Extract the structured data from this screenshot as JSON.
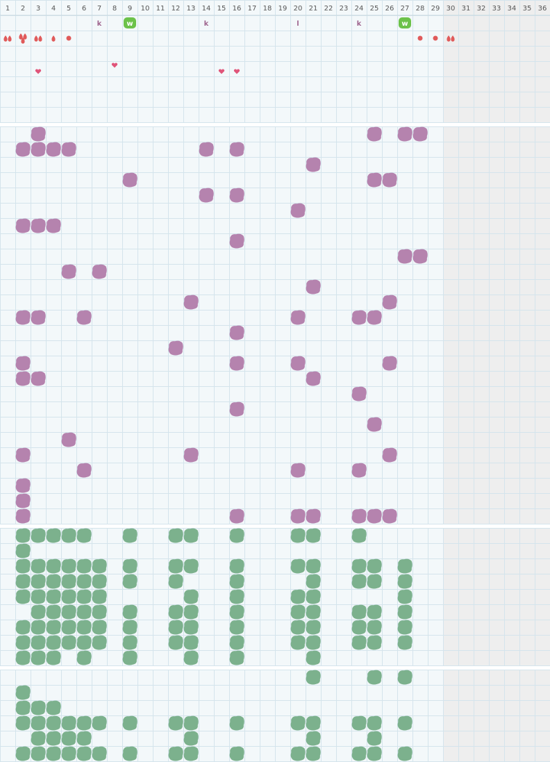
{
  "header": {
    "columns": [
      "1",
      "2",
      "3",
      "4",
      "5",
      "6",
      "7",
      "8",
      "9",
      "10",
      "11",
      "12",
      "13",
      "14",
      "15",
      "16",
      "17",
      "18",
      "19",
      "20",
      "21",
      "22",
      "23",
      "24",
      "25",
      "26",
      "27",
      "28",
      "29",
      "30",
      "31",
      "32",
      "33",
      "34",
      "35",
      "36"
    ]
  },
  "markers": [
    "k",
    "w",
    "k",
    "l",
    "k",
    "w"
  ]
}
